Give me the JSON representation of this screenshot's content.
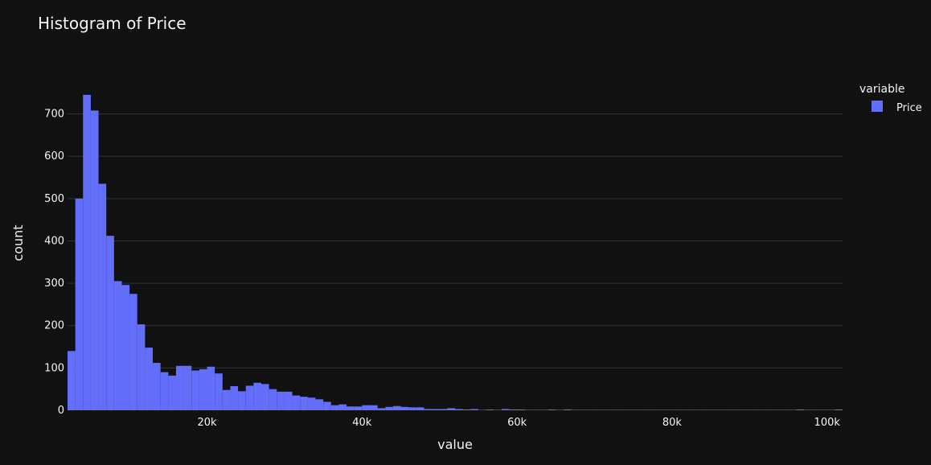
{
  "colors": {
    "background": "#111111",
    "bar": "#636efa",
    "grid": "#283442",
    "text": "#f2f5fa"
  },
  "chart_data": {
    "type": "bar",
    "title": "Histogram of Price",
    "xlabel": "value",
    "ylabel": "count",
    "xlim": [
      2000,
      102000
    ],
    "ylim": [
      0,
      760
    ],
    "bin_start": 2000,
    "bin_width": 1000,
    "x_ticks": [
      20000,
      40000,
      60000,
      80000,
      100000
    ],
    "x_tick_labels": [
      "20k",
      "40k",
      "60k",
      "80k",
      "100k"
    ],
    "y_ticks": [
      0,
      100,
      200,
      300,
      400,
      500,
      600,
      700
    ],
    "y_tick_labels": [
      "0",
      "100",
      "200",
      "300",
      "400",
      "500",
      "600",
      "700"
    ],
    "grid": true,
    "legend": {
      "title": "variable",
      "placement": "top-right"
    },
    "series": [
      {
        "name": "Price",
        "values": [
          140,
          500,
          745,
          708,
          535,
          412,
          305,
          296,
          275,
          203,
          148,
          112,
          90,
          82,
          105,
          105,
          94,
          97,
          103,
          87,
          48,
          57,
          45,
          58,
          65,
          62,
          50,
          44,
          44,
          35,
          32,
          30,
          26,
          20,
          12,
          14,
          9,
          9,
          12,
          12,
          5,
          8,
          10,
          8,
          7,
          7,
          3,
          3,
          3,
          5,
          3,
          2,
          3,
          1,
          2,
          1,
          3,
          2,
          2,
          1,
          1,
          1,
          2,
          1,
          2,
          1,
          1,
          1,
          1,
          1,
          1,
          1,
          1,
          1,
          1,
          1,
          1,
          1,
          1,
          1,
          1,
          1,
          1,
          1,
          1,
          1,
          1,
          1,
          1,
          1,
          1,
          1,
          1,
          1,
          2,
          1,
          1,
          1,
          1,
          2
        ]
      }
    ]
  }
}
